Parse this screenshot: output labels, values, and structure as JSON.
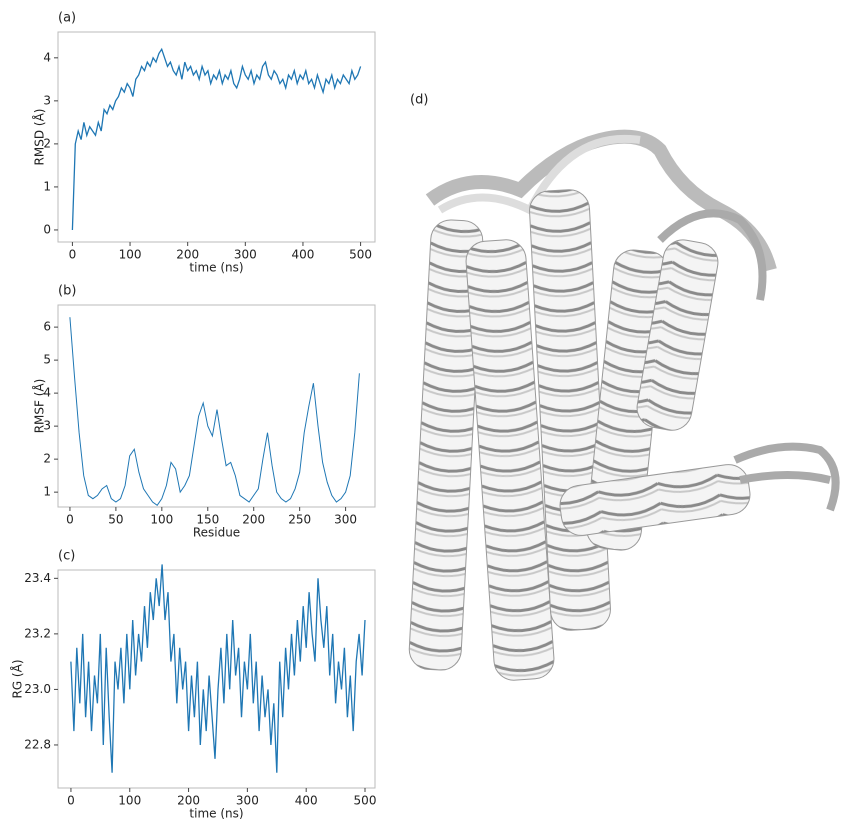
{
  "chart_data": [
    {
      "type": "line",
      "panel_label": "(a)",
      "xlabel": "time (ns)",
      "ylabel": "RMSD (Å)",
      "color": "#1f77b4",
      "xlim": [
        -25,
        525
      ],
      "ylim": [
        -0.28,
        4.6
      ],
      "xticks": [
        0,
        100,
        200,
        300,
        400,
        500
      ],
      "yticks": [
        0,
        1,
        2,
        3,
        4
      ],
      "x": [
        0,
        5,
        10,
        15,
        20,
        25,
        30,
        35,
        40,
        45,
        50,
        55,
        60,
        65,
        70,
        75,
        80,
        85,
        90,
        95,
        100,
        105,
        110,
        115,
        120,
        125,
        130,
        135,
        140,
        145,
        150,
        155,
        160,
        165,
        170,
        175,
        180,
        185,
        190,
        195,
        200,
        205,
        210,
        215,
        220,
        225,
        230,
        235,
        240,
        245,
        250,
        255,
        260,
        265,
        270,
        275,
        280,
        285,
        290,
        295,
        300,
        305,
        310,
        315,
        320,
        325,
        330,
        335,
        340,
        345,
        350,
        355,
        360,
        365,
        370,
        375,
        380,
        385,
        390,
        395,
        400,
        405,
        410,
        415,
        420,
        425,
        430,
        435,
        440,
        445,
        450,
        455,
        460,
        465,
        470,
        475,
        480,
        485,
        490,
        495,
        500
      ],
      "values": [
        0.0,
        2.0,
        2.3,
        2.1,
        2.5,
        2.2,
        2.4,
        2.3,
        2.2,
        2.5,
        2.3,
        2.8,
        2.7,
        2.9,
        2.8,
        3.0,
        3.1,
        3.3,
        3.2,
        3.4,
        3.3,
        3.1,
        3.5,
        3.6,
        3.8,
        3.7,
        3.9,
        3.8,
        4.0,
        3.9,
        4.1,
        4.2,
        4.0,
        3.8,
        3.9,
        3.7,
        3.6,
        3.8,
        3.5,
        3.9,
        3.7,
        3.8,
        3.6,
        3.7,
        3.5,
        3.8,
        3.6,
        3.7,
        3.4,
        3.6,
        3.5,
        3.7,
        3.4,
        3.6,
        3.5,
        3.7,
        3.4,
        3.3,
        3.5,
        3.8,
        3.6,
        3.5,
        3.7,
        3.4,
        3.6,
        3.5,
        3.8,
        3.9,
        3.6,
        3.5,
        3.7,
        3.6,
        3.4,
        3.5,
        3.3,
        3.6,
        3.5,
        3.7,
        3.4,
        3.6,
        3.5,
        3.7,
        3.4,
        3.5,
        3.3,
        3.6,
        3.4,
        3.2,
        3.5,
        3.4,
        3.6,
        3.3,
        3.5,
        3.4,
        3.6,
        3.5,
        3.4,
        3.7,
        3.5,
        3.6,
        3.8
      ]
    },
    {
      "type": "line",
      "panel_label": "(b)",
      "xlabel": "Residue",
      "ylabel": "RMSF (Å)",
      "color": "#1f77b4",
      "xlim": [
        -13,
        332
      ],
      "ylim": [
        0.55,
        6.67
      ],
      "xticks": [
        0,
        50,
        100,
        150,
        200,
        250,
        300
      ],
      "yticks": [
        1,
        2,
        3,
        4,
        5,
        6
      ],
      "x": [
        0,
        5,
        10,
        15,
        20,
        25,
        30,
        35,
        40,
        45,
        50,
        55,
        60,
        65,
        70,
        75,
        80,
        85,
        90,
        95,
        100,
        105,
        110,
        115,
        120,
        125,
        130,
        135,
        140,
        145,
        150,
        155,
        160,
        165,
        170,
        175,
        180,
        185,
        190,
        195,
        200,
        205,
        210,
        215,
        220,
        225,
        230,
        235,
        240,
        245,
        250,
        255,
        260,
        265,
        270,
        275,
        280,
        285,
        290,
        295,
        300,
        305,
        310,
        315
      ],
      "values": [
        6.3,
        4.5,
        2.8,
        1.5,
        0.9,
        0.8,
        0.9,
        1.1,
        1.2,
        0.8,
        0.7,
        0.8,
        1.2,
        2.1,
        2.3,
        1.6,
        1.1,
        0.9,
        0.7,
        0.6,
        0.8,
        1.2,
        1.9,
        1.7,
        1.0,
        1.2,
        1.5,
        2.4,
        3.3,
        3.7,
        3.0,
        2.7,
        3.5,
        2.6,
        1.8,
        1.9,
        1.5,
        0.9,
        0.8,
        0.7,
        0.9,
        1.1,
        2.0,
        2.8,
        1.8,
        1.0,
        0.8,
        0.7,
        0.8,
        1.1,
        1.6,
        2.8,
        3.6,
        4.3,
        3.0,
        1.9,
        1.3,
        0.9,
        0.7,
        0.8,
        1.0,
        1.5,
        2.8,
        4.6
      ]
    },
    {
      "type": "line",
      "panel_label": "(c)",
      "xlabel": "time (ns)",
      "ylabel": "RG (Å)",
      "color": "#1f77b4",
      "xlim": [
        -22,
        517
      ],
      "ylim": [
        22.645,
        23.43
      ],
      "xticks": [
        0,
        100,
        200,
        300,
        400,
        500
      ],
      "yticks": [
        22.8,
        {
          "value": 23,
          "label": "23.0"
        },
        23.2,
        23.4
      ],
      "x": [
        0,
        5,
        10,
        15,
        20,
        25,
        30,
        35,
        40,
        45,
        50,
        55,
        60,
        65,
        70,
        75,
        80,
        85,
        90,
        95,
        100,
        105,
        110,
        115,
        120,
        125,
        130,
        135,
        140,
        145,
        150,
        155,
        160,
        165,
        170,
        175,
        180,
        185,
        190,
        195,
        200,
        205,
        210,
        215,
        220,
        225,
        230,
        235,
        240,
        245,
        250,
        255,
        260,
        265,
        270,
        275,
        280,
        285,
        290,
        295,
        300,
        305,
        310,
        315,
        320,
        325,
        330,
        335,
        340,
        345,
        350,
        355,
        360,
        365,
        370,
        375,
        380,
        385,
        390,
        395,
        400,
        405,
        410,
        415,
        420,
        425,
        430,
        435,
        440,
        445,
        450,
        455,
        460,
        465,
        470,
        475,
        480,
        485,
        490,
        495,
        500
      ],
      "values": [
        23.1,
        22.85,
        23.15,
        22.95,
        23.2,
        22.9,
        23.1,
        22.85,
        23.05,
        22.95,
        23.2,
        22.8,
        23.15,
        22.9,
        22.7,
        23.1,
        23.0,
        23.15,
        22.95,
        23.2,
        23.0,
        23.25,
        23.05,
        23.2,
        23.1,
        23.3,
        23.15,
        23.35,
        23.25,
        23.4,
        23.3,
        23.45,
        23.25,
        23.35,
        23.1,
        23.2,
        22.95,
        23.15,
        23.0,
        23.1,
        22.85,
        23.05,
        22.9,
        23.1,
        22.8,
        23.0,
        22.85,
        23.05,
        22.9,
        22.75,
        23.0,
        23.15,
        22.95,
        23.2,
        23.0,
        23.25,
        23.05,
        23.15,
        22.9,
        23.1,
        23.0,
        23.2,
        22.95,
        23.1,
        22.85,
        23.05,
        22.9,
        23.0,
        22.8,
        22.95,
        22.7,
        23.1,
        22.9,
        23.15,
        23.0,
        23.2,
        23.05,
        23.25,
        23.1,
        23.3,
        23.15,
        23.35,
        23.2,
        23.1,
        23.4,
        23.25,
        23.15,
        23.3,
        23.05,
        23.2,
        22.95,
        23.1,
        23.0,
        23.15,
        22.9,
        23.05,
        22.85,
        23.1,
        23.2,
        23.05,
        23.25
      ]
    }
  ],
  "image_panel": {
    "label": "(d)"
  }
}
